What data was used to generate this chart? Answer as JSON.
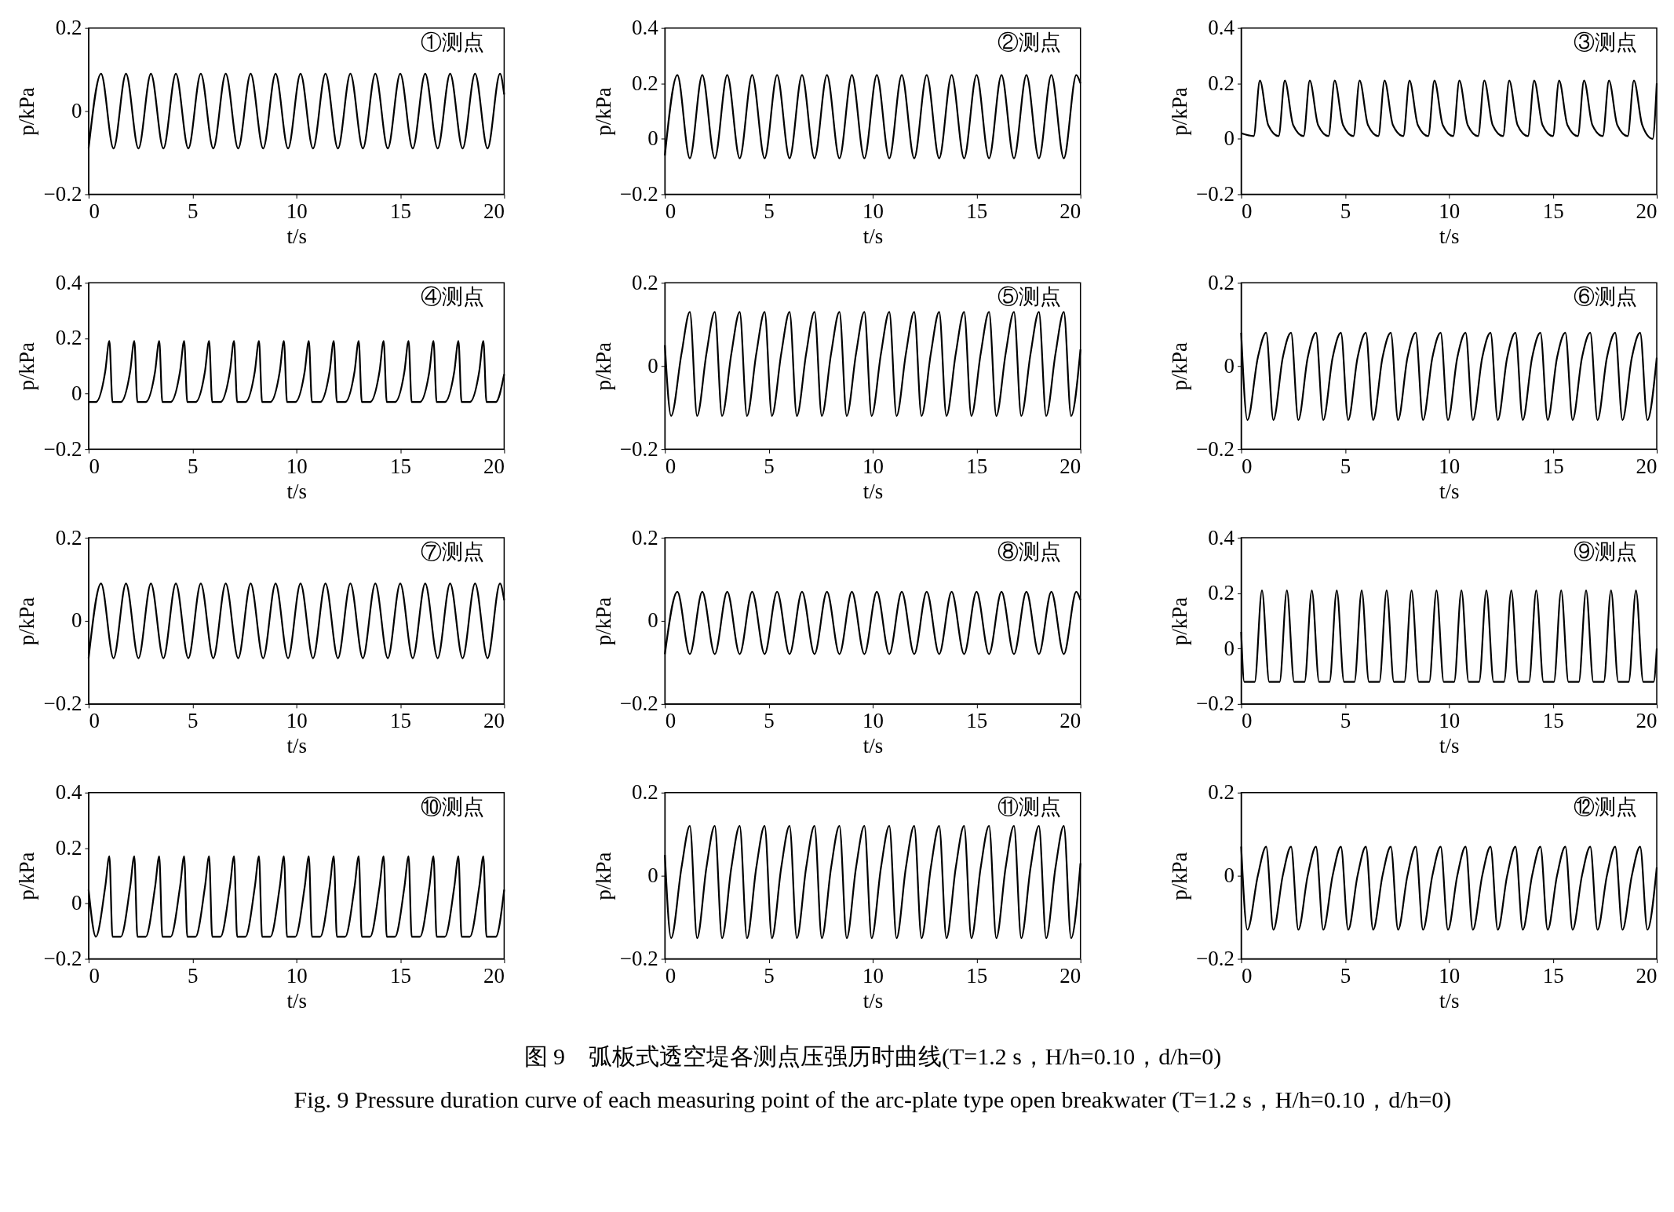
{
  "chart_data": [
    {
      "type": "line",
      "color": "#000000",
      "xlabel": "t/s",
      "ylabel": "p/kPa",
      "xlim": [
        0,
        20
      ],
      "xticks": [
        0,
        5,
        10,
        15,
        20
      ],
      "ylim": [
        -0.2,
        0.2
      ],
      "yticks": [
        -0.2,
        0,
        0.2
      ],
      "annotations": [
        "①测点"
      ],
      "x": [
        0,
        0.6,
        1.2,
        1.8,
        2.4,
        3.0,
        3.6,
        4.2,
        4.8,
        5.4,
        6.0,
        6.6,
        7.2,
        7.8,
        8.4,
        9.0,
        9.6,
        10.2,
        10.8,
        11.4,
        12.0,
        12.6,
        13.2,
        13.8,
        14.4,
        15.0,
        15.6,
        16.2,
        16.8,
        17.4,
        18.0,
        18.6,
        19.2,
        19.8,
        20
      ],
      "values": [
        -0.09,
        0.09,
        -0.09,
        0.09,
        -0.09,
        0.09,
        -0.09,
        0.09,
        -0.09,
        0.09,
        -0.09,
        0.09,
        -0.09,
        0.09,
        -0.09,
        0.09,
        -0.09,
        0.09,
        -0.09,
        0.09,
        -0.09,
        0.09,
        -0.09,
        0.09,
        -0.09,
        0.09,
        -0.09,
        0.09,
        -0.09,
        0.09,
        -0.09,
        0.09,
        -0.09,
        0.09,
        0.04
      ]
    },
    {
      "type": "line",
      "color": "#000000",
      "xlabel": "t/s",
      "ylabel": "p/kPa",
      "xlim": [
        0,
        20
      ],
      "xticks": [
        0,
        5,
        10,
        15,
        20
      ],
      "ylim": [
        -0.2,
        0.4
      ],
      "yticks": [
        -0.2,
        0,
        0.2,
        0.4
      ],
      "annotations": [
        "②测点"
      ],
      "x": [
        0,
        0.6,
        1.2,
        1.8,
        2.4,
        3.0,
        3.6,
        4.2,
        4.8,
        5.4,
        6.0,
        6.6,
        7.2,
        7.8,
        8.4,
        9.0,
        9.6,
        10.2,
        10.8,
        11.4,
        12.0,
        12.6,
        13.2,
        13.8,
        14.4,
        15.0,
        15.6,
        16.2,
        16.8,
        17.4,
        18.0,
        18.6,
        19.2,
        19.8,
        20
      ],
      "values": [
        -0.06,
        0.23,
        -0.07,
        0.23,
        -0.07,
        0.23,
        -0.07,
        0.23,
        -0.07,
        0.23,
        -0.07,
        0.23,
        -0.07,
        0.23,
        -0.07,
        0.23,
        -0.07,
        0.23,
        -0.07,
        0.23,
        -0.07,
        0.23,
        -0.07,
        0.23,
        -0.07,
        0.23,
        -0.07,
        0.23,
        -0.07,
        0.23,
        -0.07,
        0.23,
        -0.07,
        0.23,
        0.2
      ]
    },
    {
      "type": "line",
      "color": "#000000",
      "xlabel": "t/s",
      "ylabel": "p/kPa",
      "xlim": [
        0,
        20
      ],
      "xticks": [
        0,
        5,
        10,
        15,
        20
      ],
      "ylim": [
        -0.2,
        0.4
      ],
      "yticks": [
        -0.2,
        0,
        0.2,
        0.4
      ],
      "annotations": [
        "③测点"
      ],
      "x": [
        0,
        0.6,
        0.9,
        1.3,
        1.8,
        2.1,
        2.5,
        3.0,
        3.3,
        3.7,
        4.2,
        4.5,
        4.9,
        5.4,
        5.7,
        6.1,
        6.6,
        6.9,
        7.3,
        7.8,
        8.1,
        8.5,
        9.0,
        9.3,
        9.7,
        10.2,
        10.5,
        10.9,
        11.4,
        11.7,
        12.1,
        12.6,
        12.9,
        13.3,
        13.8,
        14.1,
        14.5,
        15.0,
        15.3,
        15.7,
        16.2,
        16.5,
        16.9,
        17.4,
        17.7,
        18.1,
        18.6,
        18.9,
        19.3,
        19.8,
        20
      ],
      "values": [
        0.02,
        0.01,
        0.21,
        0.05,
        0.01,
        0.21,
        0.05,
        0.01,
        0.21,
        0.05,
        0.01,
        0.21,
        0.05,
        0.01,
        0.21,
        0.05,
        0.01,
        0.21,
        0.05,
        0.01,
        0.21,
        0.05,
        0.01,
        0.21,
        0.05,
        0.01,
        0.21,
        0.05,
        0.01,
        0.21,
        0.05,
        0.01,
        0.21,
        0.05,
        0.01,
        0.21,
        0.05,
        0.01,
        0.21,
        0.05,
        0.01,
        0.21,
        0.05,
        0.01,
        0.21,
        0.05,
        0.01,
        0.21,
        0.05,
        0.0,
        0.2
      ]
    },
    {
      "type": "line",
      "color": "#000000",
      "xlabel": "t/s",
      "ylabel": "p/kPa",
      "xlim": [
        0,
        20
      ],
      "xticks": [
        0,
        5,
        10,
        15,
        20
      ],
      "ylim": [
        -0.2,
        0.4
      ],
      "yticks": [
        -0.2,
        0,
        0.2,
        0.4
      ],
      "annotations": [
        "④测点"
      ],
      "x": [
        0,
        0.35,
        0.8,
        1.0,
        1.15,
        1.55,
        2.0,
        2.2,
        2.35,
        2.75,
        3.2,
        3.4,
        3.55,
        3.95,
        4.4,
        4.6,
        4.75,
        5.15,
        5.6,
        5.8,
        5.95,
        6.35,
        6.8,
        7.0,
        7.15,
        7.55,
        8.0,
        8.2,
        8.35,
        8.75,
        9.2,
        9.4,
        9.55,
        9.95,
        10.4,
        10.6,
        10.75,
        11.15,
        11.6,
        11.8,
        11.95,
        12.35,
        12.8,
        13.0,
        13.15,
        13.55,
        14.0,
        14.2,
        14.35,
        14.75,
        15.2,
        15.4,
        15.55,
        15.95,
        16.4,
        16.6,
        16.75,
        17.15,
        17.6,
        17.8,
        17.95,
        18.35,
        18.8,
        19.0,
        19.15,
        19.6,
        20
      ],
      "values": [
        -0.03,
        -0.03,
        0.08,
        0.19,
        -0.03,
        -0.03,
        0.08,
        0.19,
        -0.03,
        -0.03,
        0.08,
        0.19,
        -0.03,
        -0.03,
        0.08,
        0.19,
        -0.03,
        -0.03,
        0.08,
        0.19,
        -0.03,
        -0.03,
        0.08,
        0.19,
        -0.03,
        -0.03,
        0.08,
        0.19,
        -0.03,
        -0.03,
        0.08,
        0.19,
        -0.03,
        -0.03,
        0.08,
        0.19,
        -0.03,
        -0.03,
        0.08,
        0.19,
        -0.03,
        -0.03,
        0.08,
        0.19,
        -0.03,
        -0.03,
        0.08,
        0.19,
        -0.03,
        -0.03,
        0.08,
        0.19,
        -0.03,
        -0.03,
        0.08,
        0.19,
        -0.03,
        -0.03,
        0.08,
        0.19,
        -0.03,
        -0.03,
        0.08,
        0.19,
        -0.03,
        -0.03,
        0.07
      ]
    },
    {
      "type": "line",
      "color": "#000000",
      "xlabel": "t/s",
      "ylabel": "p/kPa",
      "xlim": [
        0,
        20
      ],
      "xticks": [
        0,
        5,
        10,
        15,
        20
      ],
      "ylim": [
        -0.2,
        0.2
      ],
      "yticks": [
        -0.2,
        0,
        0.2
      ],
      "annotations": [
        "⑤测点"
      ],
      "x": [
        0,
        0.3,
        0.8,
        1.2,
        1.55,
        2.0,
        2.4,
        2.75,
        3.2,
        3.6,
        3.95,
        4.4,
        4.8,
        5.15,
        5.6,
        6.0,
        6.35,
        6.8,
        7.2,
        7.55,
        8.0,
        8.4,
        8.75,
        9.2,
        9.6,
        9.95,
        10.4,
        10.8,
        11.15,
        11.6,
        12.0,
        12.35,
        12.8,
        13.2,
        13.55,
        14.0,
        14.4,
        14.75,
        15.2,
        15.6,
        15.95,
        16.4,
        16.8,
        17.15,
        17.6,
        18.0,
        18.35,
        18.8,
        19.2,
        19.55,
        20
      ],
      "values": [
        0.05,
        -0.12,
        0.03,
        0.13,
        -0.12,
        0.03,
        0.13,
        -0.12,
        0.03,
        0.13,
        -0.12,
        0.03,
        0.13,
        -0.12,
        0.03,
        0.13,
        -0.12,
        0.03,
        0.13,
        -0.12,
        0.03,
        0.13,
        -0.12,
        0.03,
        0.13,
        -0.12,
        0.03,
        0.13,
        -0.12,
        0.03,
        0.13,
        -0.12,
        0.03,
        0.13,
        -0.12,
        0.03,
        0.13,
        -0.12,
        0.03,
        0.13,
        -0.12,
        0.03,
        0.13,
        -0.12,
        0.03,
        0.13,
        -0.12,
        0.03,
        0.13,
        -0.12,
        0.04
      ]
    },
    {
      "type": "line",
      "color": "#000000",
      "xlabel": "t/s",
      "ylabel": "p/kPa",
      "xlim": [
        0,
        20
      ],
      "xticks": [
        0,
        5,
        10,
        15,
        20
      ],
      "ylim": [
        -0.2,
        0.2
      ],
      "yticks": [
        -0.2,
        0,
        0.2
      ],
      "annotations": [
        "⑥测点"
      ],
      "x": [
        0,
        0.3,
        0.8,
        1.2,
        1.55,
        2.0,
        2.4,
        2.75,
        3.2,
        3.6,
        3.95,
        4.4,
        4.8,
        5.15,
        5.6,
        6.0,
        6.35,
        6.8,
        7.2,
        7.55,
        8.0,
        8.4,
        8.75,
        9.2,
        9.6,
        9.95,
        10.4,
        10.8,
        11.15,
        11.6,
        12.0,
        12.35,
        12.8,
        13.2,
        13.55,
        14.0,
        14.4,
        14.75,
        15.2,
        15.6,
        15.95,
        16.4,
        16.8,
        17.15,
        17.6,
        18.0,
        18.35,
        18.8,
        19.2,
        19.55,
        20
      ],
      "values": [
        0.08,
        -0.13,
        0.02,
        0.08,
        -0.13,
        0.02,
        0.08,
        -0.13,
        0.02,
        0.08,
        -0.13,
        0.02,
        0.08,
        -0.13,
        0.02,
        0.08,
        -0.13,
        0.02,
        0.08,
        -0.13,
        0.02,
        0.08,
        -0.13,
        0.02,
        0.08,
        -0.13,
        0.02,
        0.08,
        -0.13,
        0.02,
        0.08,
        -0.13,
        0.02,
        0.08,
        -0.13,
        0.02,
        0.08,
        -0.13,
        0.02,
        0.08,
        -0.13,
        0.02,
        0.08,
        -0.13,
        0.02,
        0.08,
        -0.13,
        0.02,
        0.08,
        -0.13,
        0.02
      ]
    },
    {
      "type": "line",
      "color": "#000000",
      "xlabel": "t/s",
      "ylabel": "p/kPa",
      "xlim": [
        0,
        20
      ],
      "xticks": [
        0,
        5,
        10,
        15,
        20
      ],
      "ylim": [
        -0.2,
        0.2
      ],
      "yticks": [
        -0.2,
        0,
        0.2
      ],
      "annotations": [
        "⑦测点"
      ],
      "x": [
        0,
        0.6,
        1.2,
        1.8,
        2.4,
        3.0,
        3.6,
        4.2,
        4.8,
        5.4,
        6.0,
        6.6,
        7.2,
        7.8,
        8.4,
        9.0,
        9.6,
        10.2,
        10.8,
        11.4,
        12.0,
        12.6,
        13.2,
        13.8,
        14.4,
        15.0,
        15.6,
        16.2,
        16.8,
        17.4,
        18.0,
        18.6,
        19.2,
        19.8,
        20
      ],
      "values": [
        -0.09,
        0.09,
        -0.09,
        0.09,
        -0.09,
        0.09,
        -0.09,
        0.09,
        -0.09,
        0.09,
        -0.09,
        0.09,
        -0.09,
        0.09,
        -0.09,
        0.09,
        -0.09,
        0.09,
        -0.09,
        0.09,
        -0.09,
        0.09,
        -0.09,
        0.09,
        -0.09,
        0.09,
        -0.09,
        0.09,
        -0.09,
        0.09,
        -0.09,
        0.09,
        -0.09,
        0.09,
        0.05
      ]
    },
    {
      "type": "line",
      "color": "#000000",
      "xlabel": "t/s",
      "ylabel": "p/kPa",
      "xlim": [
        0,
        20
      ],
      "xticks": [
        0,
        5,
        10,
        15,
        20
      ],
      "ylim": [
        -0.2,
        0.2
      ],
      "yticks": [
        -0.2,
        0,
        0.2
      ],
      "annotations": [
        "⑧测点"
      ],
      "x": [
        0,
        0.6,
        1.2,
        1.8,
        2.4,
        3.0,
        3.6,
        4.2,
        4.8,
        5.4,
        6.0,
        6.6,
        7.2,
        7.8,
        8.4,
        9.0,
        9.6,
        10.2,
        10.8,
        11.4,
        12.0,
        12.6,
        13.2,
        13.8,
        14.4,
        15.0,
        15.6,
        16.2,
        16.8,
        17.4,
        18.0,
        18.6,
        19.2,
        19.8,
        20
      ],
      "values": [
        -0.08,
        0.07,
        -0.08,
        0.07,
        -0.08,
        0.07,
        -0.08,
        0.07,
        -0.08,
        0.07,
        -0.08,
        0.07,
        -0.08,
        0.07,
        -0.08,
        0.07,
        -0.08,
        0.07,
        -0.08,
        0.07,
        -0.08,
        0.07,
        -0.08,
        0.07,
        -0.08,
        0.07,
        -0.08,
        0.07,
        -0.08,
        0.07,
        -0.08,
        0.07,
        -0.08,
        0.07,
        0.05
      ]
    },
    {
      "type": "line",
      "color": "#000000",
      "xlabel": "t/s",
      "ylabel": "p/kPa",
      "xlim": [
        0,
        20
      ],
      "xticks": [
        0,
        5,
        10,
        15,
        20
      ],
      "ylim": [
        -0.2,
        0.4
      ],
      "yticks": [
        -0.2,
        0,
        0.2,
        0.4
      ],
      "annotations": [
        "⑨测点"
      ],
      "x": [
        0,
        0.15,
        0.65,
        1.0,
        1.35,
        1.85,
        2.2,
        2.55,
        3.05,
        3.4,
        3.75,
        4.25,
        4.6,
        4.95,
        5.45,
        5.8,
        6.15,
        6.65,
        7.0,
        7.35,
        7.85,
        8.2,
        8.55,
        9.05,
        9.4,
        9.75,
        10.25,
        10.6,
        10.95,
        11.45,
        11.8,
        12.15,
        12.65,
        13.0,
        13.35,
        13.85,
        14.2,
        14.55,
        15.05,
        15.4,
        15.75,
        16.25,
        16.6,
        16.95,
        17.45,
        17.8,
        18.15,
        18.65,
        19.0,
        19.35,
        19.85,
        20
      ],
      "values": [
        0.06,
        -0.12,
        -0.12,
        0.21,
        -0.12,
        -0.12,
        0.21,
        -0.12,
        -0.12,
        0.21,
        -0.12,
        -0.12,
        0.21,
        -0.12,
        -0.12,
        0.21,
        -0.12,
        -0.12,
        0.21,
        -0.12,
        -0.12,
        0.21,
        -0.12,
        -0.12,
        0.21,
        -0.12,
        -0.12,
        0.21,
        -0.12,
        -0.12,
        0.21,
        -0.12,
        -0.12,
        0.21,
        -0.12,
        -0.12,
        0.21,
        -0.12,
        -0.12,
        0.21,
        -0.12,
        -0.12,
        0.21,
        -0.12,
        -0.12,
        0.21,
        -0.12,
        -0.12,
        0.21,
        -0.12,
        -0.12,
        0.0
      ]
    },
    {
      "type": "line",
      "color": "#000000",
      "xlabel": "t/s",
      "ylabel": "p/kPa",
      "xlim": [
        0,
        20
      ],
      "xticks": [
        0,
        5,
        10,
        15,
        20
      ],
      "ylim": [
        -0.2,
        0.4
      ],
      "yticks": [
        -0.2,
        0,
        0.2,
        0.4
      ],
      "annotations": [
        "⑩测点"
      ],
      "x": [
        0,
        0.35,
        0.8,
        1.0,
        1.15,
        1.55,
        2.0,
        2.2,
        2.35,
        2.75,
        3.2,
        3.4,
        3.55,
        3.95,
        4.4,
        4.6,
        4.75,
        5.15,
        5.6,
        5.8,
        5.95,
        6.35,
        6.8,
        7.0,
        7.15,
        7.55,
        8.0,
        8.2,
        8.35,
        8.75,
        9.2,
        9.4,
        9.55,
        9.95,
        10.4,
        10.6,
        10.75,
        11.15,
        11.6,
        11.8,
        11.95,
        12.35,
        12.8,
        13.0,
        13.15,
        13.55,
        14.0,
        14.2,
        14.35,
        14.75,
        15.2,
        15.4,
        15.55,
        15.95,
        16.4,
        16.6,
        16.75,
        17.15,
        17.6,
        17.8,
        17.95,
        18.35,
        18.8,
        19.0,
        19.15,
        19.6,
        20
      ],
      "values": [
        0.05,
        -0.12,
        0.06,
        0.17,
        -0.12,
        -0.12,
        0.06,
        0.17,
        -0.12,
        -0.12,
        0.06,
        0.17,
        -0.12,
        -0.12,
        0.06,
        0.17,
        -0.12,
        -0.12,
        0.06,
        0.17,
        -0.12,
        -0.12,
        0.06,
        0.17,
        -0.12,
        -0.12,
        0.06,
        0.17,
        -0.12,
        -0.12,
        0.06,
        0.17,
        -0.12,
        -0.12,
        0.06,
        0.17,
        -0.12,
        -0.12,
        0.06,
        0.17,
        -0.12,
        -0.12,
        0.06,
        0.17,
        -0.12,
        -0.12,
        0.06,
        0.17,
        -0.12,
        -0.12,
        0.06,
        0.17,
        -0.12,
        -0.12,
        0.06,
        0.17,
        -0.12,
        -0.12,
        0.06,
        0.17,
        -0.12,
        -0.12,
        0.06,
        0.17,
        -0.12,
        -0.12,
        0.05
      ]
    },
    {
      "type": "line",
      "color": "#000000",
      "xlabel": "t/s",
      "ylabel": "p/kPa",
      "xlim": [
        0,
        20
      ],
      "xticks": [
        0,
        5,
        10,
        15,
        20
      ],
      "ylim": [
        -0.2,
        0.2
      ],
      "yticks": [
        -0.2,
        0,
        0.2
      ],
      "annotations": [
        "⑪测点"
      ],
      "x": [
        0,
        0.3,
        0.8,
        1.2,
        1.55,
        2.0,
        2.4,
        2.75,
        3.2,
        3.6,
        3.95,
        4.4,
        4.8,
        5.15,
        5.6,
        6.0,
        6.35,
        6.8,
        7.2,
        7.55,
        8.0,
        8.4,
        8.75,
        9.2,
        9.6,
        9.95,
        10.4,
        10.8,
        11.15,
        11.6,
        12.0,
        12.35,
        12.8,
        13.2,
        13.55,
        14.0,
        14.4,
        14.75,
        15.2,
        15.6,
        15.95,
        16.4,
        16.8,
        17.15,
        17.6,
        18.0,
        18.35,
        18.8,
        19.2,
        19.55,
        20
      ],
      "values": [
        0.05,
        -0.15,
        0.02,
        0.12,
        -0.15,
        0.02,
        0.12,
        -0.15,
        0.02,
        0.12,
        -0.15,
        0.02,
        0.12,
        -0.15,
        0.02,
        0.12,
        -0.15,
        0.02,
        0.12,
        -0.15,
        0.02,
        0.12,
        -0.15,
        0.02,
        0.12,
        -0.15,
        0.02,
        0.12,
        -0.15,
        0.02,
        0.12,
        -0.15,
        0.02,
        0.12,
        -0.15,
        0.02,
        0.12,
        -0.15,
        0.02,
        0.12,
        -0.15,
        0.02,
        0.12,
        -0.15,
        0.02,
        0.12,
        -0.15,
        0.02,
        0.12,
        -0.15,
        0.03
      ]
    },
    {
      "type": "line",
      "color": "#000000",
      "xlabel": "t/s",
      "ylabel": "p/kPa",
      "xlim": [
        0,
        20
      ],
      "xticks": [
        0,
        5,
        10,
        15,
        20
      ],
      "ylim": [
        -0.2,
        0.2
      ],
      "yticks": [
        -0.2,
        0,
        0.2
      ],
      "annotations": [
        "⑫测点",
        "图 9　弧板式透空堤各测点压强历时曲线(T=1.2 s，H/h=0.10，d/h=0)",
        "Fig. 9  Pressure duration curve of each measuring point of the arc-plate type open breakwater (T=1.2 s，H/h=0.10，d/h=0)"
      ],
      "x": [
        0,
        0.3,
        0.8,
        1.2,
        1.55,
        2.0,
        2.4,
        2.75,
        3.2,
        3.6,
        3.95,
        4.4,
        4.8,
        5.15,
        5.6,
        6.0,
        6.35,
        6.8,
        7.2,
        7.55,
        8.0,
        8.4,
        8.75,
        9.2,
        9.6,
        9.95,
        10.4,
        10.8,
        11.15,
        11.6,
        12.0,
        12.35,
        12.8,
        13.2,
        13.55,
        14.0,
        14.4,
        14.75,
        15.2,
        15.6,
        15.95,
        16.4,
        16.8,
        17.15,
        17.6,
        18.0,
        18.35,
        18.8,
        19.2,
        19.55,
        20
      ],
      "values": [
        0.07,
        -0.13,
        0.0,
        0.07,
        -0.13,
        0.0,
        0.07,
        -0.13,
        0.0,
        0.07,
        -0.13,
        0.0,
        0.07,
        -0.13,
        0.0,
        0.07,
        -0.13,
        0.0,
        0.07,
        -0.13,
        0.0,
        0.07,
        -0.13,
        0.0,
        0.07,
        -0.13,
        0.0,
        0.07,
        -0.13,
        0.0,
        0.07,
        -0.13,
        0.0,
        0.07,
        -0.13,
        0.0,
        0.07,
        -0.13,
        0.0,
        0.07,
        -0.13,
        0.0,
        0.07,
        -0.13,
        0.0,
        0.07,
        -0.13,
        0.0,
        0.07,
        -0.13,
        0.02
      ]
    }
  ]
}
